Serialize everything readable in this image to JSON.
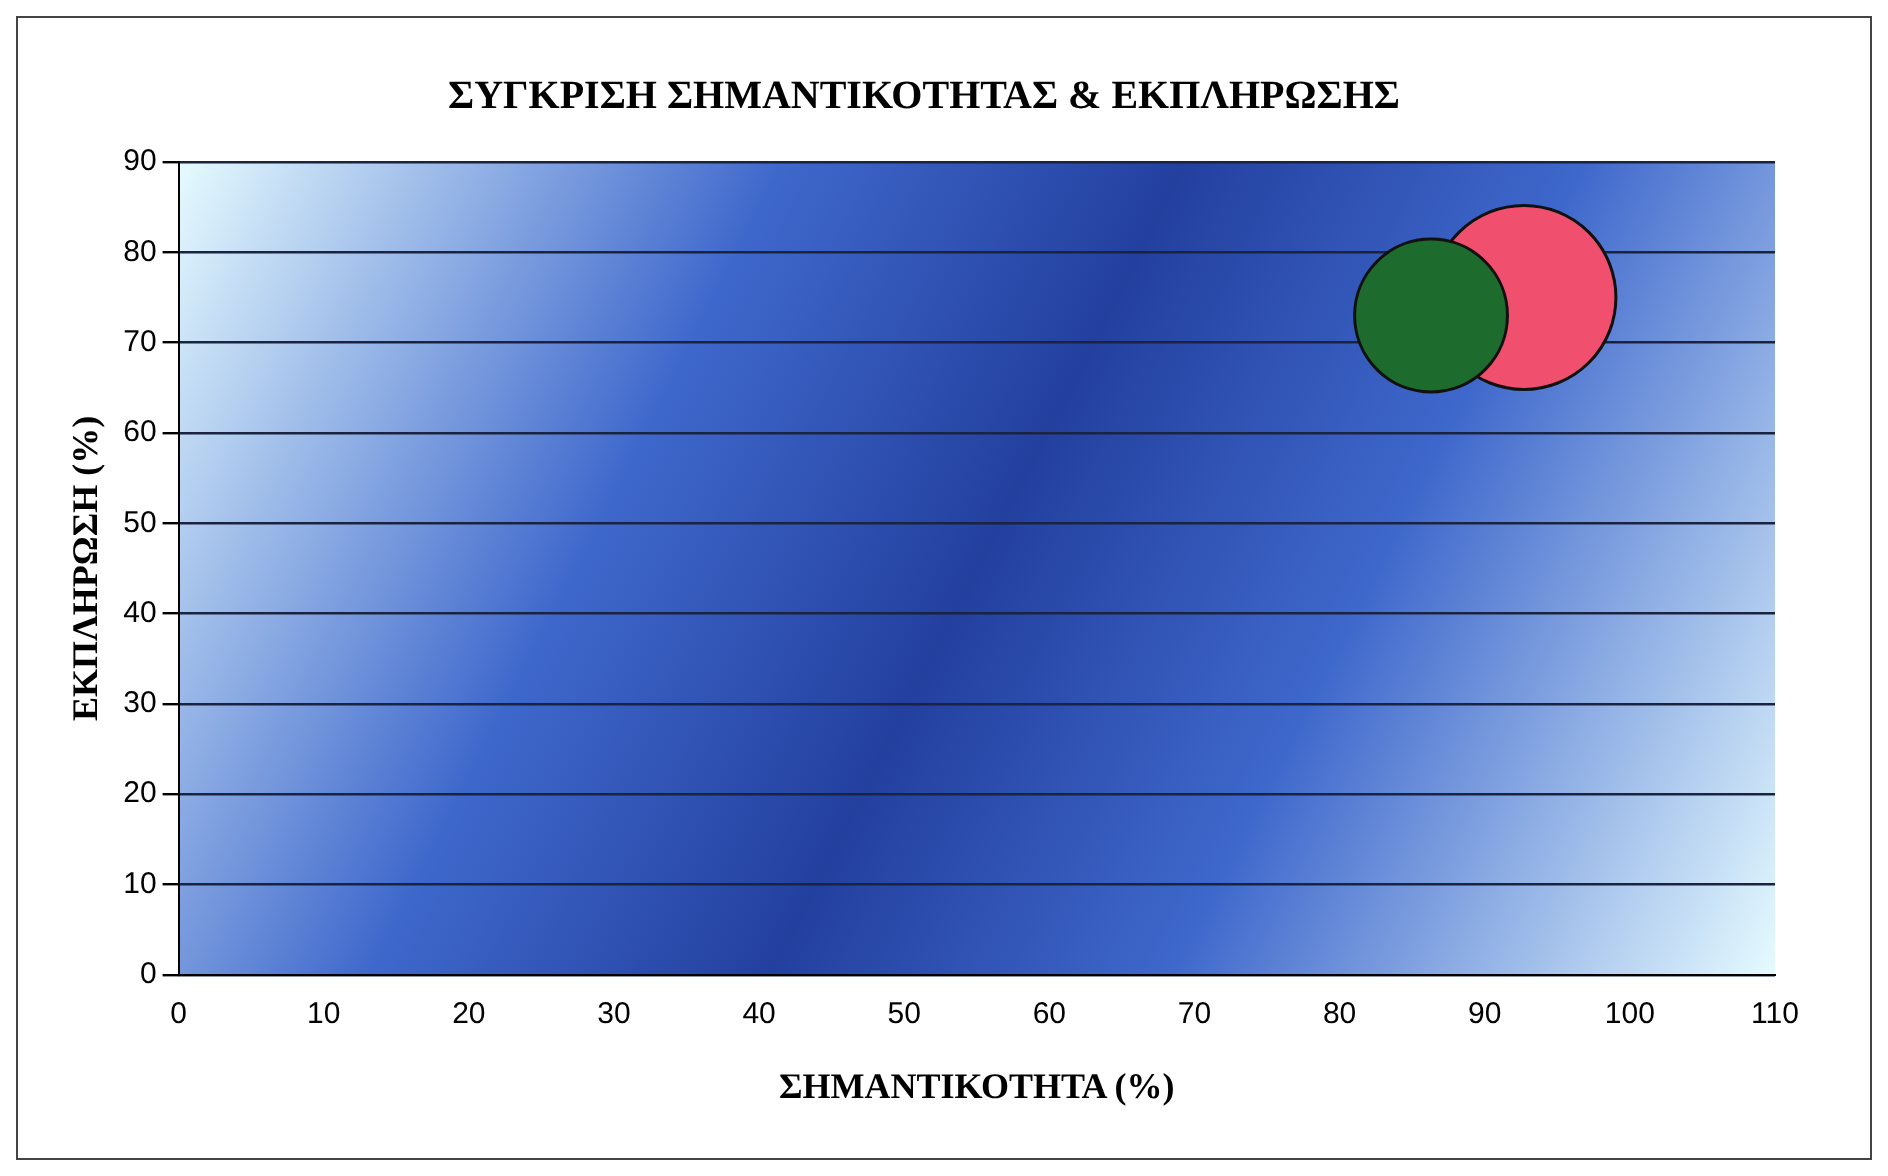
{
  "chart_data": {
    "type": "bubble",
    "title": "ΣΥΓΚΡΙΣΗ ΣΗΜΑΝΤΙΚΟΤΗΤΑΣ & ΕΚΠΛΗΡΩΣΗΣ",
    "xlabel": "ΣΗΜΑΝΤΙΚΟΤΗΤΑ (%)",
    "ylabel": "ΕΚΠΛΗΡΩΣΗ (%)",
    "series": [
      {
        "color": "#1e6b2e",
        "x": [
          86.3
        ],
        "values": [
          73
        ],
        "sizes": [
          0.69
        ]
      },
      {
        "color": "#f0506e",
        "x": [
          92.7
        ],
        "values": [
          75
        ],
        "sizes": [
          1
        ]
      }
    ],
    "xlim": [
      0,
      110
    ],
    "xticks": [
      0,
      10,
      20,
      30,
      40,
      50,
      60,
      70,
      80,
      90,
      100,
      110
    ],
    "ylim": [
      0,
      90
    ],
    "yticks": [
      0,
      10,
      20,
      30,
      40,
      50,
      60,
      70,
      80,
      90
    ],
    "grid": "y",
    "legend": false
  }
}
